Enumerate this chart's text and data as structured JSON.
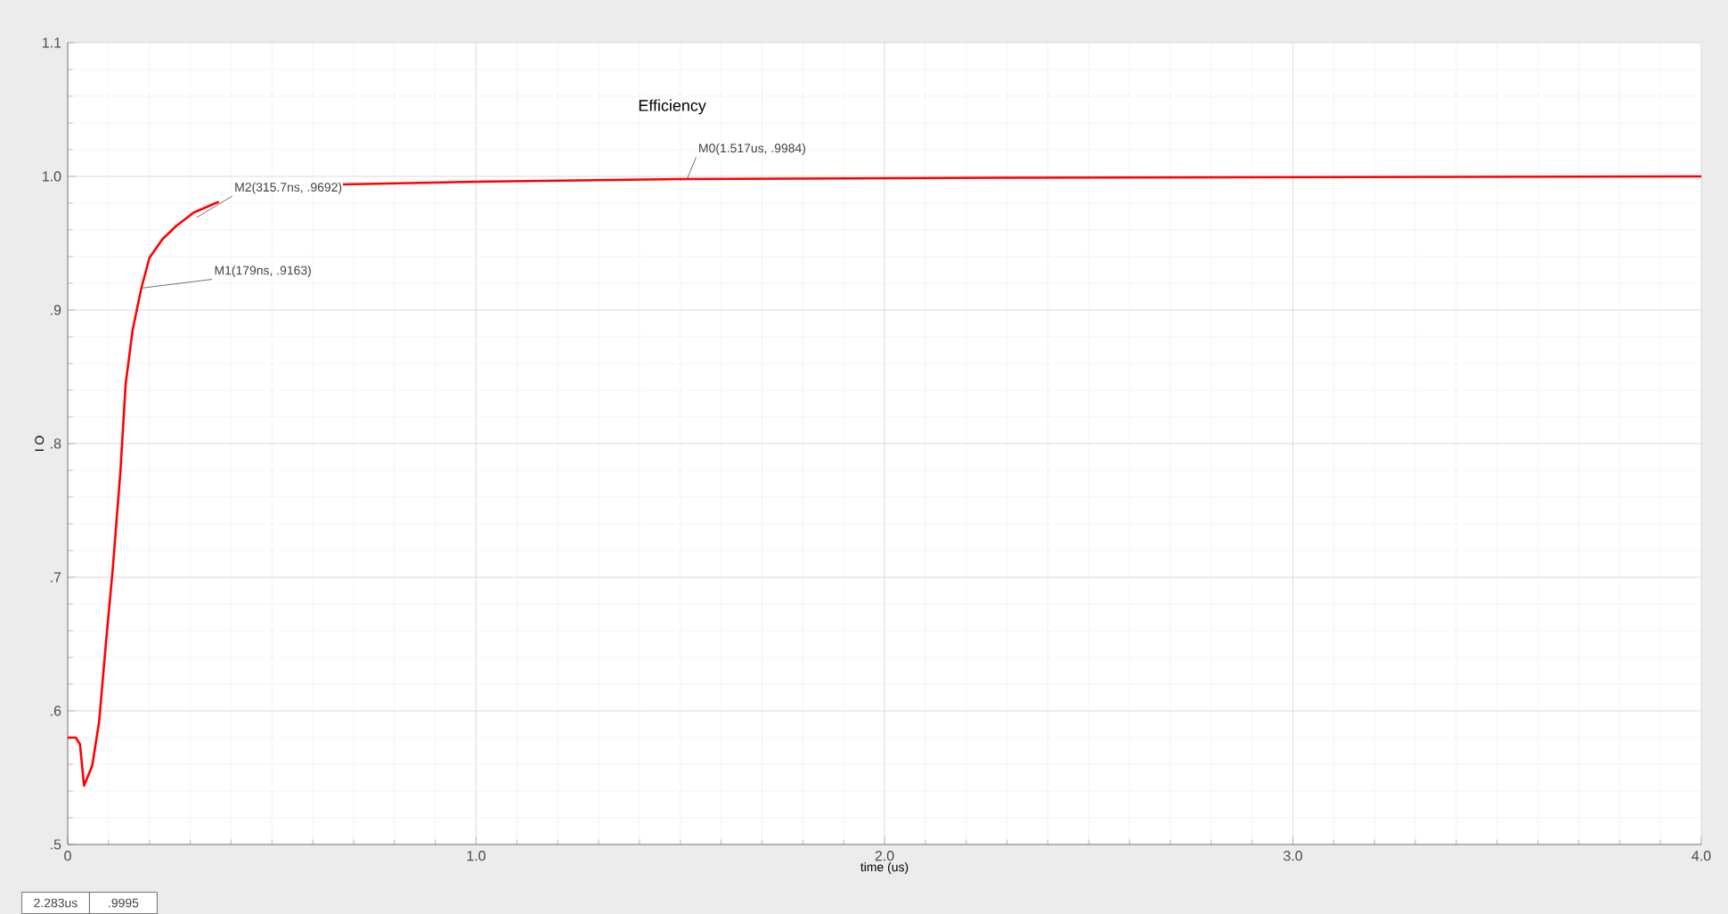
{
  "chart_data": {
    "type": "line",
    "title": "Efficiency",
    "xlabel": "time (us)",
    "ylabel": "I O",
    "series": [
      {
        "color": "#ff0000",
        "x": [
          0,
          0.02,
          0.03,
          0.04,
          0.06,
          0.077,
          0.094,
          0.11,
          0.129,
          0.142,
          0.159,
          0.18,
          0.2,
          0.232,
          0.266,
          0.309,
          0.37,
          0.5,
          0.674,
          1.0,
          1.517,
          2.283,
          4.0
        ],
        "values": [
          0.58,
          0.58,
          0.575,
          0.544,
          0.559,
          0.592,
          0.652,
          0.705,
          0.779,
          0.845,
          0.885,
          0.916,
          0.939,
          0.953,
          0.963,
          0.973,
          0.981,
          null,
          0.994,
          0.996,
          0.998,
          0.999,
          1.0
        ]
      }
    ],
    "xlim": [
      0,
      4
    ],
    "ylim": [
      0.5,
      1.1
    ],
    "xticks": [
      0,
      {
        "value": 1,
        "label": "1.0"
      },
      {
        "value": 2,
        "label": "2.0"
      },
      {
        "value": 3,
        "label": "3.0"
      },
      {
        "value": 4,
        "label": "4.0"
      }
    ],
    "yticks": [
      {
        "value": 0.5,
        "label": ".5"
      },
      {
        "value": 0.6,
        "label": ".6"
      },
      {
        "value": 0.7,
        "label": ".7"
      },
      {
        "value": 0.8,
        "label": ".8"
      },
      {
        "value": 0.9,
        "label": ".9"
      },
      {
        "value": 1.0,
        "label": "1.0"
      },
      {
        "value": 1.1,
        "label": "1.1"
      }
    ],
    "grid": true,
    "marker": "none",
    "line_style": "solid",
    "annotations": [
      {
        "text": "M2(315.7ns, .9692)",
        "x": 0.3157,
        "y": 0.9692
      },
      {
        "text": "M1(179ns, .9163)",
        "x": 0.179,
        "y": 0.9163
      },
      {
        "text": "M0(1.517us, .9984)",
        "x": 1.517,
        "y": 0.9984
      },
      "2.283us",
      ".9995"
    ]
  }
}
